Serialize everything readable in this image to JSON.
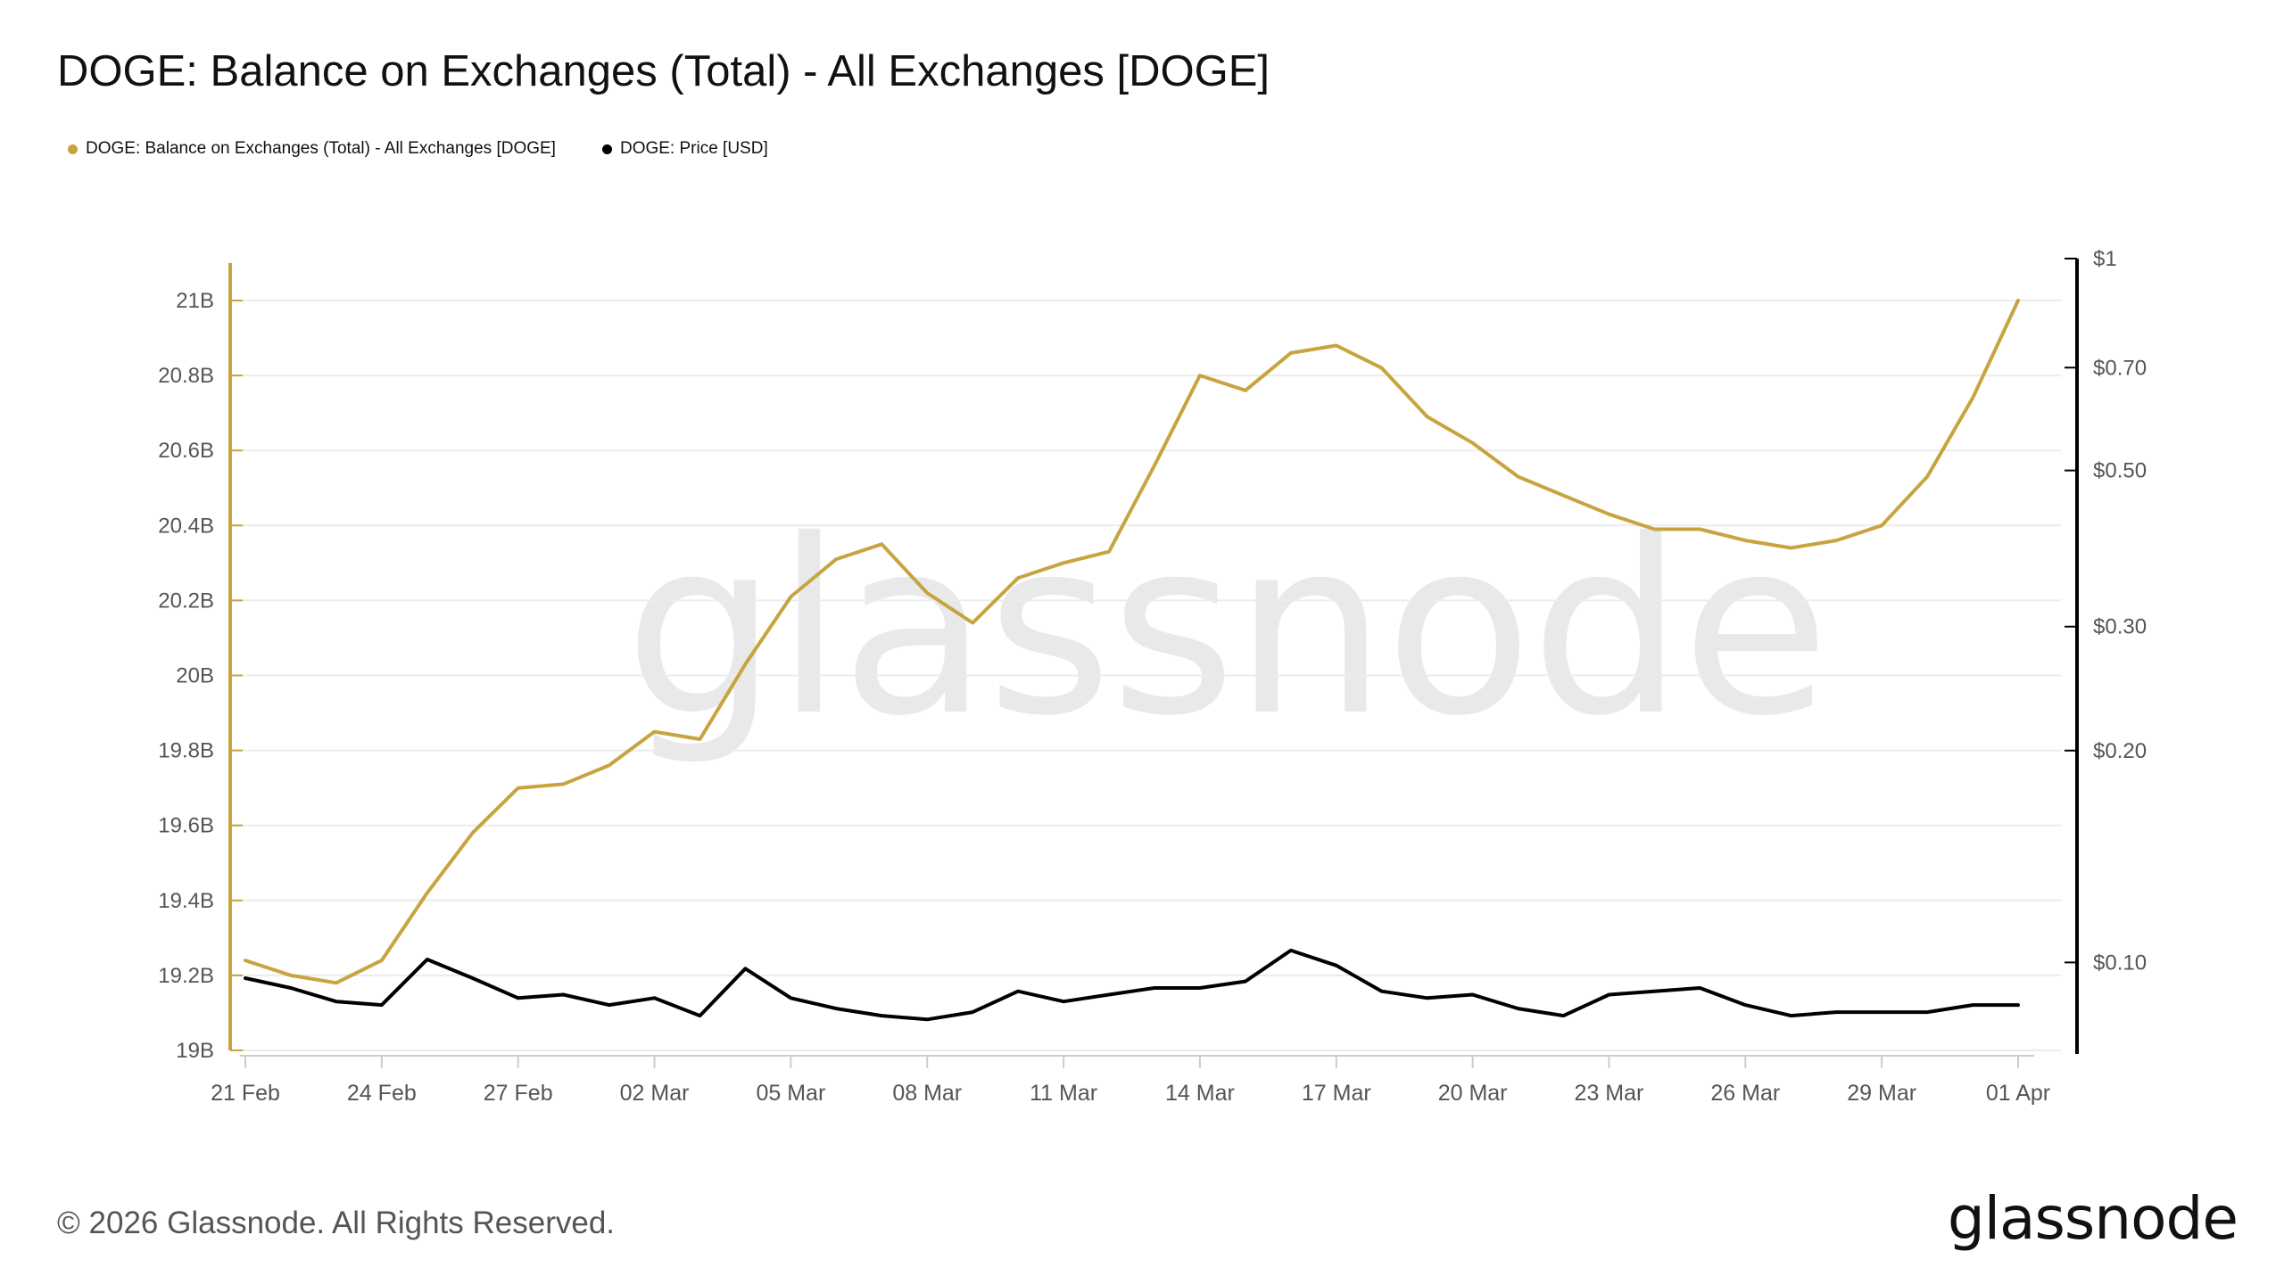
{
  "header": {
    "title": "DOGE: Balance on Exchanges (Total) - All Exchanges [DOGE]"
  },
  "legend": [
    {
      "label": "DOGE: Balance on Exchanges (Total) - All Exchanges [DOGE]",
      "color": "#c7a43f"
    },
    {
      "label": "DOGE: Price [USD]",
      "color": "#000000"
    }
  ],
  "watermark": "glassnode",
  "footer": {
    "copyright": "© 2026 Glassnode. All Rights Reserved.",
    "logo": "glassnode"
  },
  "chart_data": {
    "type": "line",
    "x_ticks": [
      "21 Feb",
      "24 Feb",
      "27 Feb",
      "02 Mar",
      "05 Mar",
      "08 Mar",
      "11 Mar",
      "14 Mar",
      "17 Mar",
      "20 Mar",
      "23 Mar",
      "26 Mar",
      "29 Mar",
      "01 Apr"
    ],
    "y_left": {
      "ticks": [
        "19B",
        "19.2B",
        "19.4B",
        "19.6B",
        "19.8B",
        "20B",
        "20.2B",
        "20.4B",
        "20.6B",
        "20.8B",
        "21B"
      ],
      "min": 19.0,
      "max": 21.1,
      "unit": "B"
    },
    "y_right": {
      "scale": "log",
      "ticks": [
        {
          "label": "$0.10",
          "value": 0.1
        },
        {
          "label": "$0.20",
          "value": 0.2
        },
        {
          "label": "$0.30",
          "value": 0.3
        },
        {
          "label": "$0.50",
          "value": 0.5
        },
        {
          "label": "$0.70",
          "value": 0.7
        },
        {
          "label": "$1",
          "value": 1.0
        }
      ],
      "min": 0.075,
      "max": 1.0
    },
    "grid": true,
    "legend_position": "top-left",
    "series": [
      {
        "name": "DOGE: Balance on Exchanges (Total) - All Exchanges [DOGE]",
        "axis": "left",
        "color": "#c7a43f",
        "values": [
          19.24,
          19.2,
          19.18,
          19.24,
          19.42,
          19.58,
          19.7,
          19.71,
          19.76,
          19.85,
          19.83,
          20.03,
          20.21,
          20.31,
          20.35,
          20.22,
          20.14,
          20.26,
          20.3,
          20.33,
          20.56,
          20.8,
          20.76,
          20.86,
          20.88,
          20.82,
          20.69,
          20.62,
          20.53,
          20.48,
          20.43,
          20.39,
          20.39,
          20.36,
          20.34,
          20.36,
          20.4,
          20.53,
          20.74,
          21.0
        ]
      },
      {
        "name": "DOGE: Price [USD]",
        "axis": "right",
        "color": "#000000",
        "values": [
          0.095,
          0.092,
          0.088,
          0.087,
          0.101,
          0.095,
          0.089,
          0.09,
          0.087,
          0.089,
          0.084,
          0.098,
          0.089,
          0.086,
          0.084,
          0.083,
          0.085,
          0.091,
          0.088,
          0.09,
          0.092,
          0.092,
          0.094,
          0.104,
          0.099,
          0.091,
          0.089,
          0.09,
          0.086,
          0.084,
          0.09,
          0.091,
          0.092,
          0.087,
          0.084,
          0.085,
          0.085,
          0.085,
          0.087,
          0.087
        ]
      }
    ]
  }
}
